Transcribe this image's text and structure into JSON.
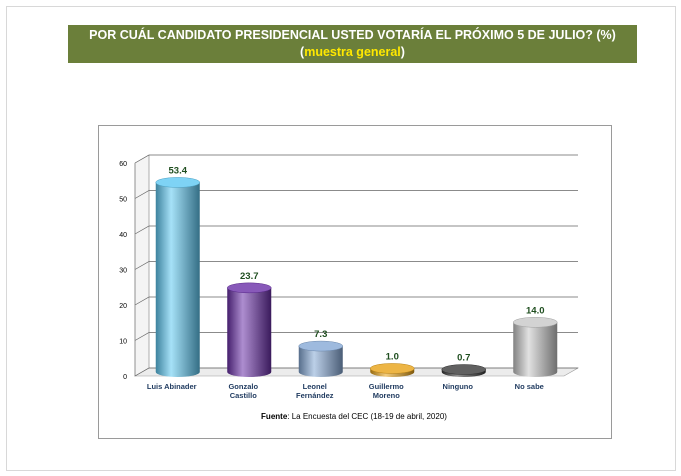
{
  "title": {
    "line1": "POR CUÁL CANDIDATO PRESIDENCIAL USTED VOTARÍA EL PRÓXIMO 5 DE JULIO? (%)",
    "line2_open": "(",
    "line2_highlight": "muestra general",
    "line2_close": ")"
  },
  "source": {
    "label": "Fuente",
    "text": ": La Encuesta del CEC (18-19 de abril, 2020)"
  },
  "chart_data": {
    "type": "bar",
    "title": "POR CUÁL CANDIDATO PRESIDENCIAL USTED VOTARÍA EL PRÓXIMO 5 DE JULIO? (%) (muestra general)",
    "categories": [
      [
        "Luis Abinader"
      ],
      [
        "Gonzalo",
        "Castillo"
      ],
      [
        "Leonel",
        "Fernández"
      ],
      [
        "Guillermo",
        "Moreno"
      ],
      [
        "Ninguno"
      ],
      [
        "No sabe"
      ]
    ],
    "values": [
      53.4,
      23.7,
      7.3,
      1.0,
      0.7,
      14.0
    ],
    "value_labels": [
      "53.4",
      "23.7",
      "7.3",
      "1.0",
      "0.7",
      "14.0"
    ],
    "colors": [
      "#5ec8f2",
      "#6a2fa8",
      "#86a9d6",
      "#e8a317",
      "#3a3a3a",
      "#c8c8c8"
    ],
    "ylim": [
      0,
      60
    ],
    "yticks": [
      "0",
      "10",
      "20",
      "30",
      "40",
      "50",
      "60"
    ],
    "grid": true,
    "legend": "none"
  }
}
